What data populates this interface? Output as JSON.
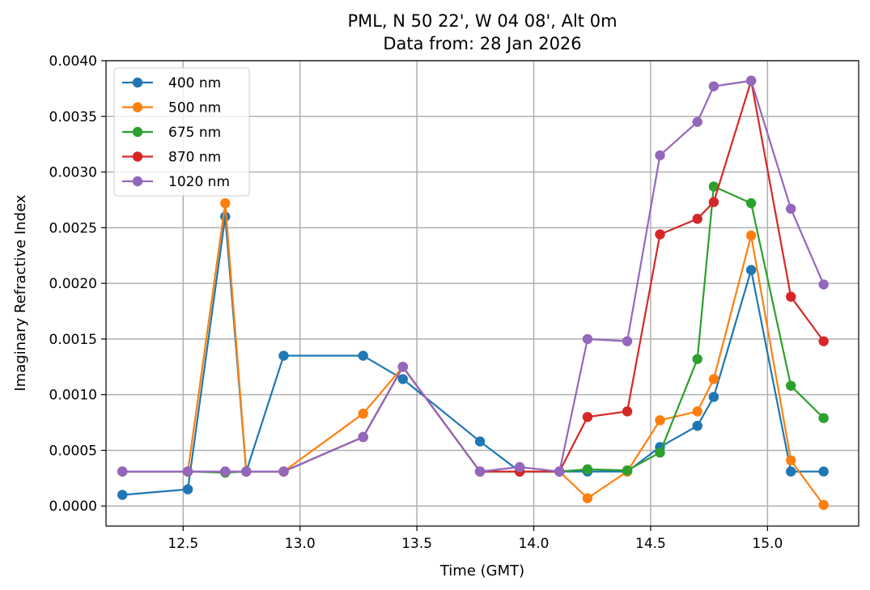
{
  "chart_data": {
    "type": "line",
    "title": "PML, N 50 22', W 04 08', Alt 0m",
    "subtitle": "Data from: 28 Jan 2026",
    "xlabel": "Time (GMT)",
    "ylabel": "Imaginary Refractive Index",
    "xlim": [
      12.17,
      15.39
    ],
    "ylim": [
      -0.00018,
      0.004
    ],
    "grid": true,
    "legend_position": "top-left",
    "x": [
      12.24,
      12.52,
      12.68,
      12.77,
      12.93,
      13.27,
      13.44,
      13.77,
      13.94,
      14.11,
      14.23,
      14.4,
      14.54,
      14.7,
      14.77,
      14.93,
      15.1,
      15.24
    ],
    "xticks": [
      12.5,
      13.0,
      13.5,
      14.0,
      14.5,
      15.0
    ],
    "xtick_labels": [
      "12.5",
      "13.0",
      "13.5",
      "14.0",
      "14.5",
      "15.0"
    ],
    "yticks": [
      0.0,
      0.0005,
      0.001,
      0.0015,
      0.002,
      0.0025,
      0.003,
      0.0035,
      0.004
    ],
    "ytick_labels": [
      "0.0000",
      "0.0005",
      "0.0010",
      "0.0015",
      "0.0020",
      "0.0025",
      "0.0030",
      "0.0035",
      "0.0040"
    ],
    "series": [
      {
        "name": "400 nm",
        "color": "#1f77b4",
        "values": [
          0.0001,
          0.00015,
          0.0026,
          0.00031,
          0.00135,
          0.00135,
          0.00114,
          0.00058,
          0.00031,
          0.00031,
          0.00031,
          0.00031,
          0.00053,
          0.00072,
          0.00098,
          0.00212,
          0.00031,
          0.00031
        ]
      },
      {
        "name": "500 nm",
        "color": "#ff7f0e",
        "values": [
          0.00031,
          0.00031,
          0.00272,
          0.00031,
          0.00031,
          0.00083,
          0.00125,
          0.00031,
          0.00031,
          0.00031,
          7e-05,
          0.00031,
          0.00077,
          0.00085,
          0.00114,
          0.00243,
          0.00041,
          1e-05
        ]
      },
      {
        "name": "675 nm",
        "color": "#2ca02c",
        "values": [
          0.00031,
          0.00031,
          0.0003,
          0.00031,
          0.00031,
          0.00062,
          0.00125,
          0.00031,
          0.00031,
          0.00031,
          0.00033,
          0.00032,
          0.00048,
          0.00132,
          0.00287,
          0.00272,
          0.00108,
          0.00079
        ]
      },
      {
        "name": "870 nm",
        "color": "#d62728",
        "values": [
          0.00031,
          0.00031,
          0.00031,
          0.00031,
          0.00031,
          0.00062,
          0.00125,
          0.00031,
          0.00031,
          0.00031,
          0.0008,
          0.00085,
          0.00244,
          0.00258,
          0.00273,
          0.00382,
          0.00188,
          0.00148
        ]
      },
      {
        "name": "1020 nm",
        "color": "#9467bd",
        "values": [
          0.00031,
          0.00031,
          0.00031,
          0.00031,
          0.00031,
          0.00062,
          0.00125,
          0.00031,
          0.00035,
          0.00031,
          0.0015,
          0.00148,
          0.00315,
          0.00345,
          0.00377,
          0.00382,
          0.00267,
          0.00199
        ]
      }
    ]
  }
}
